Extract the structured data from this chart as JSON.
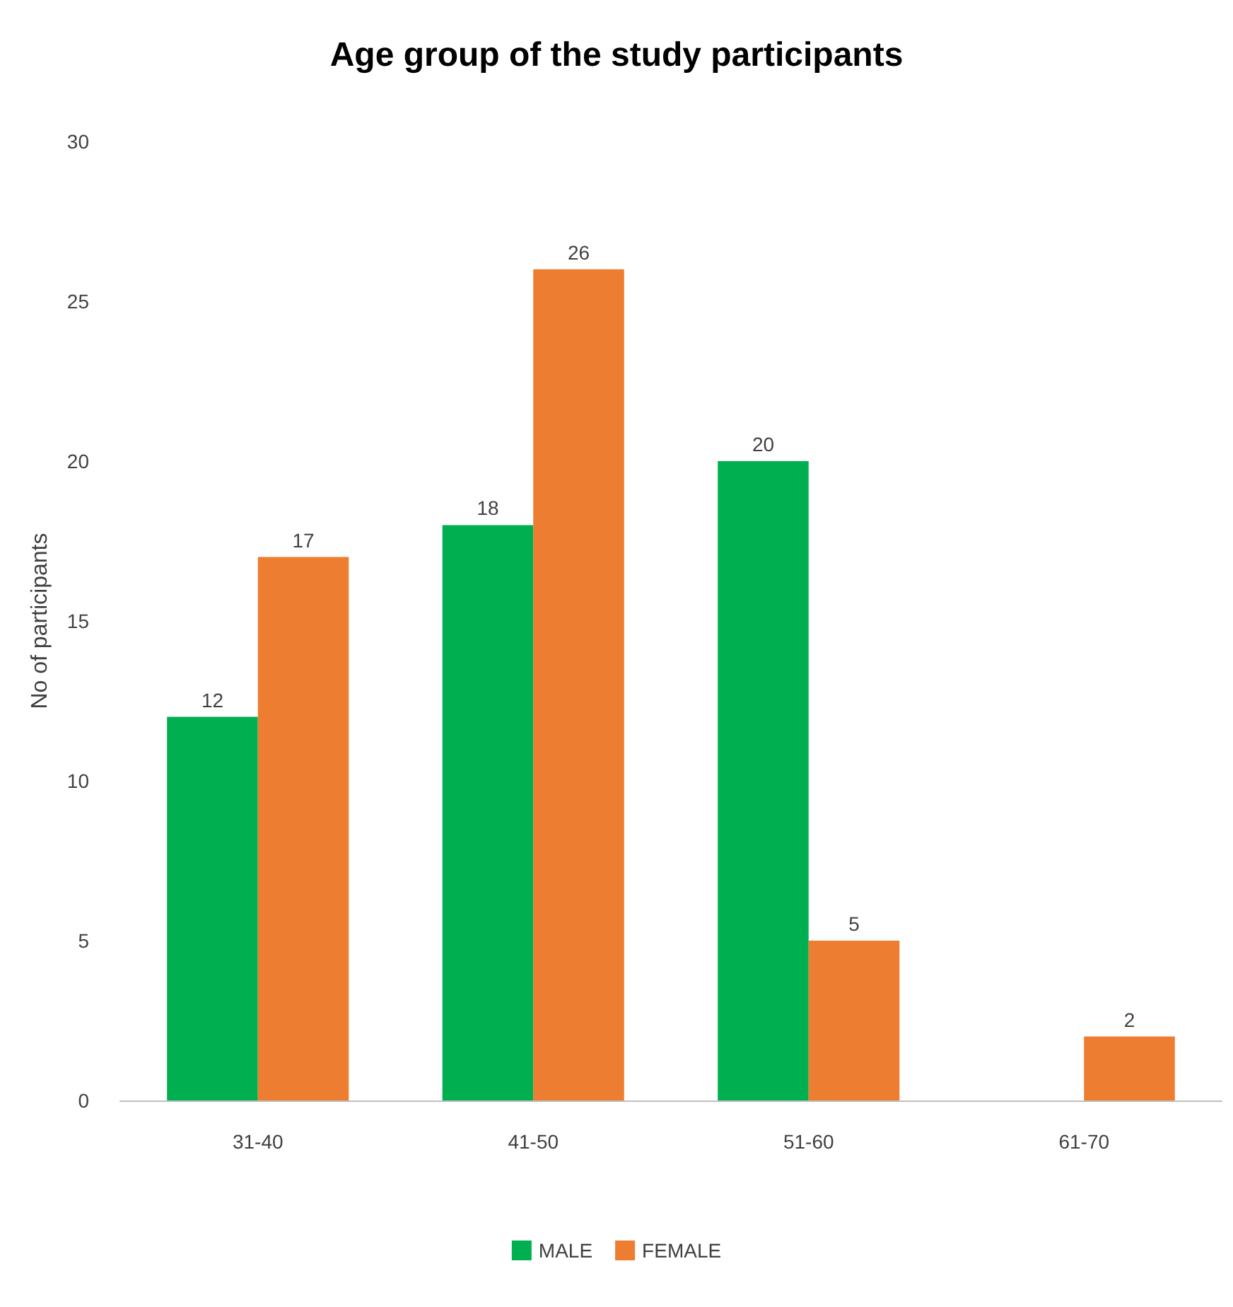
{
  "chart_data": {
    "type": "bar",
    "title": "Age group of the study participants",
    "ylabel": "No of participants",
    "categories": [
      "31-40",
      "41-50",
      "51-60",
      "61-70"
    ],
    "series": [
      {
        "name": "MALE",
        "color": "#00b050",
        "values": [
          12,
          18,
          20,
          null
        ]
      },
      {
        "name": "FEMALE",
        "color": "#ed7d31",
        "values": [
          17,
          26,
          5,
          2
        ]
      }
    ],
    "ylim": [
      0,
      30
    ],
    "yticks": [
      0,
      5,
      10,
      15,
      20,
      25,
      30
    ],
    "grid": false,
    "legend": "bottom",
    "data_labels": true
  }
}
